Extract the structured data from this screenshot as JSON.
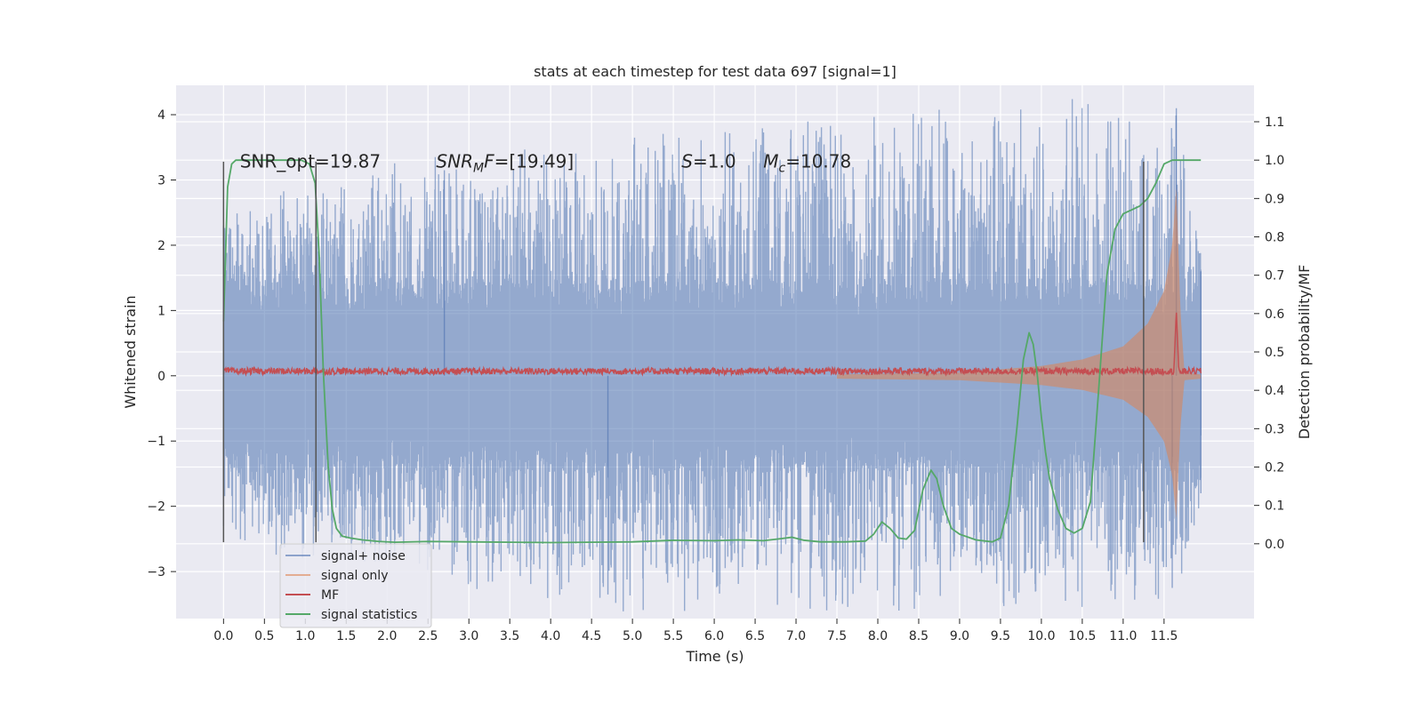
{
  "chart_data": {
    "type": "line",
    "title": "stats at each timestep for test data 697 [signal=1]",
    "xlabel": "Time (s)",
    "ylabel": "Whitened strain",
    "y2label": "Detection probability/MF",
    "xlim": [
      -0.58,
      12.6
    ],
    "ylim": [
      -3.72,
      4.45
    ],
    "y2lim": [
      -0.195,
      1.195
    ],
    "xticks": [
      0.0,
      0.5,
      1.0,
      1.5,
      2.0,
      2.5,
      3.0,
      3.5,
      4.0,
      4.5,
      5.0,
      5.5,
      6.0,
      6.5,
      7.0,
      7.5,
      8.0,
      8.5,
      9.0,
      9.5,
      10.0,
      10.5,
      11.0,
      11.5
    ],
    "xtick_labels": [
      "0.0",
      "0.5",
      "1.0",
      "1.5",
      "2.0",
      "2.5",
      "3.0",
      "3.5",
      "4.0",
      "4.5",
      "5.0",
      "5.5",
      "6.0",
      "6.5",
      "7.0",
      "7.5",
      "8.0",
      "8.5",
      "9.0",
      "9.5",
      "10.0",
      "10.5",
      "11.0",
      "11.5"
    ],
    "yticks": [
      -3,
      -2,
      -1,
      0,
      1,
      2,
      3,
      4
    ],
    "ytick_labels": [
      "−3",
      "−2",
      "−1",
      "0",
      "1",
      "2",
      "3",
      "4"
    ],
    "y2ticks": [
      0.0,
      0.1,
      0.2,
      0.3,
      0.4,
      0.5,
      0.6,
      0.7,
      0.8,
      0.9,
      1.0,
      1.1
    ],
    "y2tick_labels": [
      "0.0",
      "0.1",
      "0.2",
      "0.3",
      "0.4",
      "0.5",
      "0.6",
      "0.7",
      "0.8",
      "0.9",
      "1.0",
      "1.1"
    ],
    "grid": true,
    "legend_position": "lower-left",
    "annotations": [
      {
        "label": "SNR_opt=19.87",
        "x": 0.2,
        "y": 3.3,
        "italic_parts": []
      },
      {
        "label": "SNR_MF=[19.49]",
        "x": 2.6,
        "y": 3.3
      },
      {
        "label": "S=1.0",
        "x": 5.6,
        "y": 3.3
      },
      {
        "label": "M_c=10.78",
        "x": 6.6,
        "y": 3.3
      }
    ],
    "vertical_lines": [
      {
        "x": 0.0,
        "y_range": [
          -2.55,
          3.28
        ]
      },
      {
        "x": 1.13,
        "y_range": [
          -2.55,
          3.28
        ]
      },
      {
        "x": 11.25,
        "y_range": [
          -2.55,
          3.28
        ]
      }
    ],
    "series": [
      {
        "name": "signal+ noise",
        "color": "#4c72b0",
        "kind": "noise_band",
        "t_range": [
          0.0,
          11.95
        ],
        "core_amplitude": 1.5,
        "spike_max": [
          [
            0.0,
            2.3
          ],
          [
            2.7,
            3.15
          ],
          [
            11.65,
            4.1
          ],
          [
            11.95,
            1.6
          ]
        ],
        "spike_min": [
          [
            0.0,
            -2.3
          ],
          [
            4.7,
            -3.35
          ],
          [
            11.6,
            -3.25
          ],
          [
            11.95,
            -1.8
          ]
        ]
      },
      {
        "name": "signal only",
        "color": "#dd8452",
        "kind": "chirp_envelope",
        "t_range": [
          7.5,
          11.95
        ],
        "envelope": [
          [
            7.5,
            0.02
          ],
          [
            9.0,
            0.05
          ],
          [
            10.0,
            0.15
          ],
          [
            10.5,
            0.25
          ],
          [
            11.0,
            0.45
          ],
          [
            11.3,
            0.8
          ],
          [
            11.5,
            1.3
          ],
          [
            11.6,
            2.0
          ],
          [
            11.65,
            2.9
          ],
          [
            11.7,
            1.0
          ],
          [
            11.75,
            0.05
          ],
          [
            11.95,
            0.02
          ]
        ]
      },
      {
        "name": "MF",
        "color": "#c44e52",
        "kind": "noisy_line",
        "t_range": [
          0.0,
          11.95
        ],
        "baseline": 0.07,
        "jitter": 0.05,
        "peak": {
          "x": 11.65,
          "y": 1.0
        }
      },
      {
        "name": "signal statistics",
        "color": "#55a868",
        "kind": "line",
        "axis": "right",
        "x": [
          0.0,
          0.05,
          0.1,
          0.15,
          0.2,
          0.3,
          0.5,
          0.8,
          0.95,
          1.05,
          1.12,
          1.17,
          1.22,
          1.28,
          1.33,
          1.38,
          1.45,
          1.55,
          1.7,
          1.9,
          2.1,
          2.5,
          3.0,
          3.5,
          4.0,
          4.5,
          5.0,
          5.5,
          6.0,
          6.3,
          6.6,
          6.8,
          6.95,
          7.1,
          7.3,
          7.6,
          7.85,
          7.95,
          8.05,
          8.15,
          8.25,
          8.35,
          8.45,
          8.55,
          8.65,
          8.72,
          8.8,
          8.9,
          9.0,
          9.2,
          9.4,
          9.5,
          9.6,
          9.7,
          9.78,
          9.85,
          9.9,
          9.95,
          10.0,
          10.05,
          10.1,
          10.2,
          10.3,
          10.4,
          10.5,
          10.6,
          10.7,
          10.8,
          10.9,
          11.0,
          11.1,
          11.2,
          11.3,
          11.4,
          11.5,
          11.6,
          11.7,
          11.8,
          11.95
        ],
        "y": [
          0.58,
          0.93,
          0.99,
          1.0,
          1.0,
          1.0,
          1.0,
          1.0,
          1.0,
          0.99,
          0.94,
          0.75,
          0.45,
          0.2,
          0.09,
          0.04,
          0.02,
          0.015,
          0.01,
          0.006,
          0.004,
          0.006,
          0.005,
          0.004,
          0.003,
          0.004,
          0.005,
          0.009,
          0.008,
          0.01,
          0.008,
          0.013,
          0.017,
          0.009,
          0.005,
          0.005,
          0.007,
          0.025,
          0.057,
          0.04,
          0.015,
          0.012,
          0.035,
          0.14,
          0.192,
          0.17,
          0.1,
          0.04,
          0.025,
          0.01,
          0.005,
          0.015,
          0.1,
          0.3,
          0.48,
          0.55,
          0.52,
          0.44,
          0.33,
          0.24,
          0.17,
          0.09,
          0.04,
          0.028,
          0.04,
          0.11,
          0.4,
          0.7,
          0.82,
          0.86,
          0.87,
          0.88,
          0.9,
          0.94,
          0.99,
          1.0,
          1.0,
          1.0,
          1.0
        ]
      }
    ]
  }
}
